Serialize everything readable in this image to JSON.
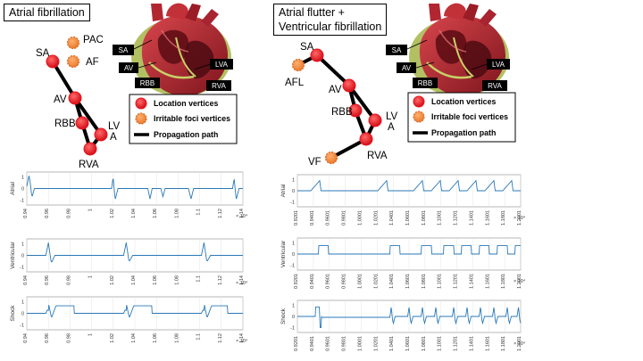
{
  "colors": {
    "node": "#e8141c",
    "irritable": "#f0883a",
    "trace": "#2a78b8",
    "heart": "#b5242c",
    "heartDark": "#6a1018",
    "heartWall": "#9bb04a"
  },
  "left": {
    "title": "Atrial fibrillation",
    "nodes": [
      {
        "id": "SA",
        "label": "SA",
        "type": "location"
      },
      {
        "id": "PAC",
        "label": "PAC",
        "type": "irritable"
      },
      {
        "id": "AF",
        "label": "AF",
        "type": "irritable"
      },
      {
        "id": "AV",
        "label": "AV",
        "type": "location"
      },
      {
        "id": "RBB",
        "label": "RBB",
        "type": "location"
      },
      {
        "id": "LVA",
        "label": "LV\nA",
        "type": "location"
      },
      {
        "id": "RVA",
        "label": "RVA",
        "type": "location"
      }
    ],
    "heart_labels": [
      "SA",
      "AV",
      "LVA",
      "RBB",
      "RVA"
    ],
    "legend": [
      "Location vertices",
      "Irritable foci vertices",
      "Propagation path"
    ],
    "plots": [
      {
        "ylabel": "Atrial",
        "ticks": [
          "0.94",
          "0.96",
          "0.98",
          "1",
          "1.02",
          "1.04",
          "1.06",
          "1.08",
          "1.1",
          "1.12",
          "1.14"
        ],
        "exp": "× 10⁴",
        "yticks": [
          "1",
          "0",
          "-1"
        ]
      },
      {
        "ylabel": "Ventricular",
        "ticks": [
          "0.94",
          "0.96",
          "0.98",
          "1",
          "1.02",
          "1.04",
          "1.06",
          "1.08",
          "1.1",
          "1.12",
          "1.14"
        ],
        "exp": "× 10⁴",
        "yticks": [
          "1",
          "0",
          "-1"
        ]
      },
      {
        "ylabel": "Shock",
        "ticks": [
          "0.94",
          "0.96",
          "0.98",
          "1",
          "1.02",
          "1.04",
          "1.06",
          "1.08",
          "1.1",
          "1.12",
          "1.14"
        ],
        "exp": "× 10⁴",
        "yticks": [
          "1",
          "0",
          "-1"
        ]
      }
    ]
  },
  "right": {
    "title_line1": "Atrial flutter +",
    "title_line2": "Ventricular fibrillation",
    "nodes": [
      {
        "id": "SA",
        "label": "SA",
        "type": "location"
      },
      {
        "id": "AFL",
        "label": "AFL",
        "type": "irritable"
      },
      {
        "id": "AV",
        "label": "AV",
        "type": "location"
      },
      {
        "id": "RBB",
        "label": "RBB",
        "type": "location"
      },
      {
        "id": "LVA",
        "label": "LV\nA",
        "type": "location"
      },
      {
        "id": "RVA",
        "label": "RVA",
        "type": "location"
      },
      {
        "id": "VF",
        "label": "VF",
        "type": "irritable"
      }
    ],
    "heart_labels": [
      "SA",
      "AV",
      "LVA",
      "RBB",
      "RVA"
    ],
    "legend": [
      "Location vertices",
      "Irritable foci vertices",
      "Propagation path"
    ],
    "plots": [
      {
        "ylabel": "Atrial",
        "ticks": [
          "0.9201",
          "0.9401",
          "0.9601",
          "0.9801",
          "1.0001",
          "1.0201",
          "1.0401",
          "1.0601",
          "1.0801",
          "1.1001",
          "1.1201",
          "1.1401",
          "1.1601",
          "1.1801",
          "1.2001"
        ],
        "exp": "× 10⁴",
        "yticks": [
          "1",
          "0",
          "-1"
        ]
      },
      {
        "ylabel": "Ventricular",
        "ticks": [
          "0.9201",
          "0.9401",
          "0.9601",
          "0.9801",
          "1.0001",
          "1.0201",
          "1.0401",
          "1.0601",
          "1.0801",
          "1.1001",
          "1.1201",
          "1.1401",
          "1.1601",
          "1.1801",
          "1.2001"
        ],
        "exp": "× 10⁴",
        "yticks": [
          "1",
          "0",
          "-1"
        ]
      },
      {
        "ylabel": "Shock",
        "ticks": [
          "0.9201",
          "0.9401",
          "0.9601",
          "0.9801",
          "1.0001",
          "1.0201",
          "1.0401",
          "1.0601",
          "1.0801",
          "1.1001",
          "1.1201",
          "1.1401",
          "1.1601",
          "1.1801",
          "1.2001"
        ],
        "exp": "× 10⁴",
        "yticks": [
          "1",
          "0",
          "-1"
        ]
      }
    ]
  }
}
